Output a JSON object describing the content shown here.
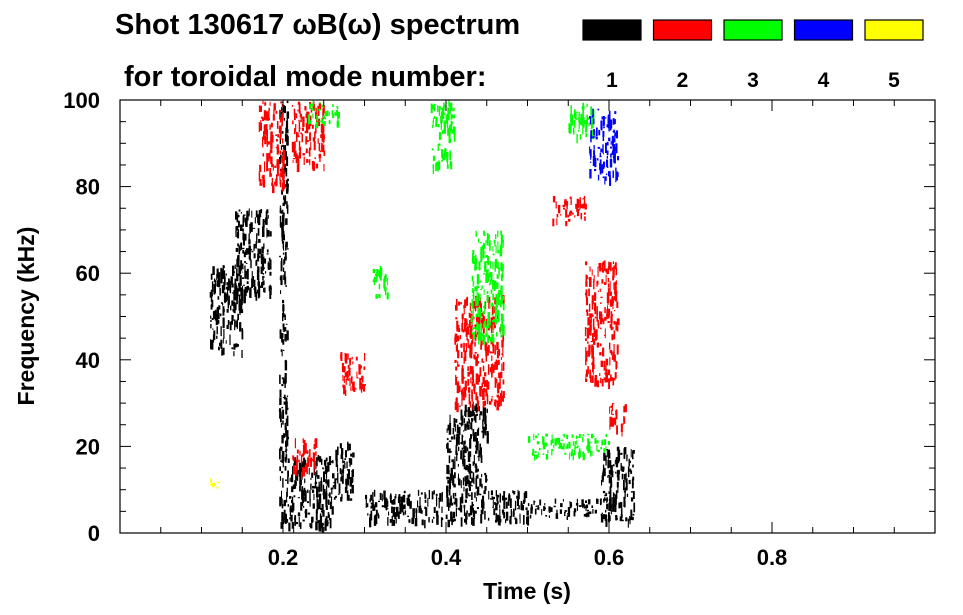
{
  "chart_data": {
    "type": "heatmap",
    "title": "Shot 130617 ωB(ω) spectrum",
    "subtitle": "for toroidal mode number:",
    "xlabel": "Time (s)",
    "ylabel": "Frequency (kHz)",
    "xlim": [
      0.0,
      1.0
    ],
    "ylim": [
      0,
      100
    ],
    "x_ticks": [
      0.2,
      0.4,
      0.6,
      0.8
    ],
    "x_tick_labels": [
      "0.2",
      "0.4",
      "0.6",
      "0.8"
    ],
    "y_ticks": [
      0,
      20,
      40,
      60,
      80,
      100
    ],
    "y_tick_labels": [
      "0",
      "20",
      "40",
      "60",
      "80",
      "100"
    ],
    "grid": false,
    "legend_position": "top-right",
    "series": [
      {
        "name": "1",
        "color": "#000000",
        "regions": [
          {
            "t0": 0.11,
            "t1": 0.15,
            "f0": 42,
            "f1": 62
          },
          {
            "t0": 0.14,
            "t1": 0.185,
            "f0": 55,
            "f1": 75
          },
          {
            "t0": 0.195,
            "t1": 0.205,
            "f0": 2,
            "f1": 100
          },
          {
            "t0": 0.205,
            "t1": 0.26,
            "f0": 2,
            "f1": 18
          },
          {
            "t0": 0.26,
            "t1": 0.285,
            "f0": 8,
            "f1": 22
          },
          {
            "t0": 0.3,
            "t1": 0.5,
            "f0": 3,
            "f1": 10
          },
          {
            "t0": 0.4,
            "t1": 0.45,
            "f0": 10,
            "f1": 30
          },
          {
            "t0": 0.5,
            "t1": 0.6,
            "f0": 4,
            "f1": 8
          },
          {
            "t0": 0.59,
            "t1": 0.63,
            "f0": 3,
            "f1": 20
          }
        ]
      },
      {
        "name": "2",
        "color": "#ff0000",
        "regions": [
          {
            "t0": 0.17,
            "t1": 0.2,
            "f0": 80,
            "f1": 100
          },
          {
            "t0": 0.21,
            "t1": 0.25,
            "f0": 85,
            "f1": 100
          },
          {
            "t0": 0.27,
            "t1": 0.3,
            "f0": 33,
            "f1": 42
          },
          {
            "t0": 0.41,
            "t1": 0.47,
            "f0": 30,
            "f1": 55
          },
          {
            "t0": 0.53,
            "t1": 0.57,
            "f0": 72,
            "f1": 78
          },
          {
            "t0": 0.57,
            "t1": 0.61,
            "f0": 35,
            "f1": 63
          },
          {
            "t0": 0.6,
            "t1": 0.62,
            "f0": 23,
            "f1": 30
          },
          {
            "t0": 0.21,
            "t1": 0.24,
            "f0": 14,
            "f1": 22
          }
        ]
      },
      {
        "name": "3",
        "color": "#00ff00",
        "regions": [
          {
            "t0": 0.23,
            "t1": 0.27,
            "f0": 95,
            "f1": 100
          },
          {
            "t0": 0.38,
            "t1": 0.41,
            "f0": 85,
            "f1": 100
          },
          {
            "t0": 0.31,
            "t1": 0.33,
            "f0": 55,
            "f1": 62
          },
          {
            "t0": 0.43,
            "t1": 0.47,
            "f0": 45,
            "f1": 70
          },
          {
            "t0": 0.55,
            "t1": 0.58,
            "f0": 92,
            "f1": 100
          },
          {
            "t0": 0.5,
            "t1": 0.6,
            "f0": 18,
            "f1": 23
          }
        ]
      },
      {
        "name": "4",
        "color": "#0000ff",
        "regions": [
          {
            "t0": 0.575,
            "t1": 0.61,
            "f0": 82,
            "f1": 98
          }
        ]
      },
      {
        "name": "5",
        "color": "#ffff00",
        "regions": [
          {
            "t0": 0.11,
            "t1": 0.12,
            "f0": 10,
            "f1": 13
          }
        ]
      }
    ]
  }
}
